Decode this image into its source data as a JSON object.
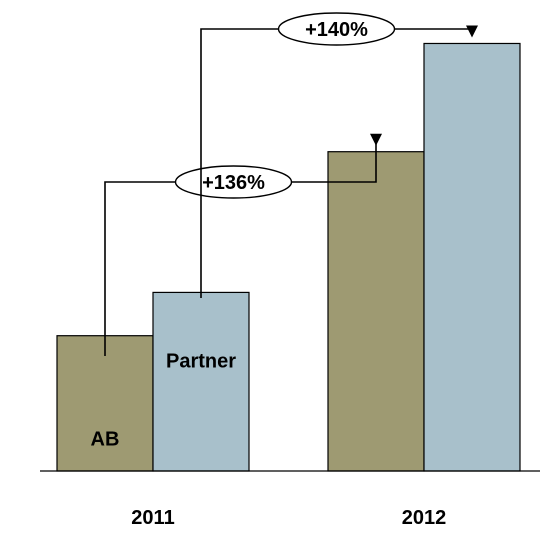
{
  "chart_data": {
    "type": "bar",
    "categories": [
      "2011",
      "2012"
    ],
    "series": [
      {
        "name": "AB",
        "values": [
          25,
          59
        ],
        "color": "#9e9a72"
      },
      {
        "name": "Partner",
        "values": [
          33,
          79
        ],
        "color": "#a8c0cb"
      }
    ],
    "ylim": [
      0,
      85
    ],
    "grid": false,
    "legend": "none",
    "in_bar_labels": {
      "AB": "AB",
      "Partner": "Partner"
    },
    "annotations": [
      {
        "label": "+136%",
        "series": "AB",
        "from": "2011",
        "to": "2012"
      },
      {
        "label": "+140%",
        "series": "Partner",
        "from": "2011",
        "to": "2012"
      }
    ]
  }
}
